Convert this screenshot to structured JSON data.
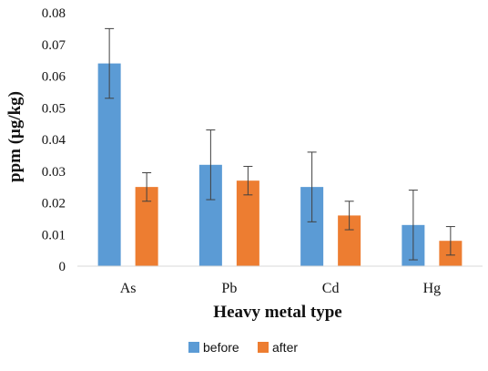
{
  "chart_data": {
    "type": "bar",
    "xlabel": "Heavy metal type",
    "ylabel": "ppm (μg/kg)",
    "ylim": [
      0,
      0.08
    ],
    "yticks": [
      "0",
      "0.01",
      "0.02",
      "0.03",
      "0.04",
      "0.05",
      "0.06",
      "0.07",
      "0.08"
    ],
    "categories": [
      "As",
      "Pb",
      "Cd",
      "Hg"
    ],
    "series": [
      {
        "name": "before",
        "color": "#5b9bd5",
        "values": [
          0.064,
          0.032,
          0.025,
          0.013
        ],
        "errors": [
          0.011,
          0.011,
          0.011,
          0.011
        ]
      },
      {
        "name": "after",
        "color": "#ed7d31",
        "values": [
          0.025,
          0.027,
          0.016,
          0.008
        ],
        "errors": [
          0.0045,
          0.0045,
          0.0045,
          0.0045
        ]
      }
    ],
    "grid": false,
    "legend": "bottom"
  }
}
